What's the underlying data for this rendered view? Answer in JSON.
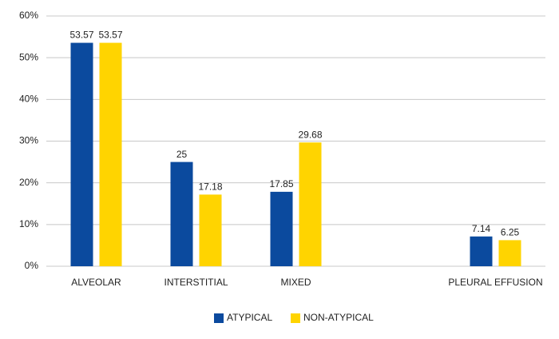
{
  "chart_data": {
    "type": "bar",
    "categories": [
      "ALVEOLAR",
      "INTERSTITIAL",
      "MIXED",
      null,
      "PLEURAL EFFUSION"
    ],
    "series": [
      {
        "name": "ATYPICAL",
        "color": "#0b4a9e",
        "values": [
          53.57,
          25,
          17.85,
          null,
          7.14
        ]
      },
      {
        "name": "NON-ATYPICAL",
        "color": "#ffd400",
        "values": [
          53.57,
          17.18,
          29.68,
          null,
          6.25
        ]
      }
    ],
    "ylim": [
      0,
      60
    ],
    "yticks": [
      {
        "value": 0,
        "label": "0%"
      },
      {
        "value": 10,
        "label": "10%"
      },
      {
        "value": 20,
        "label": "20%"
      },
      {
        "value": 30,
        "label": "30%"
      },
      {
        "value": 40,
        "label": "40%"
      },
      {
        "value": 50,
        "label": "50%"
      },
      {
        "value": 60,
        "label": "60%"
      }
    ],
    "grid": true,
    "legend": "bottom"
  }
}
